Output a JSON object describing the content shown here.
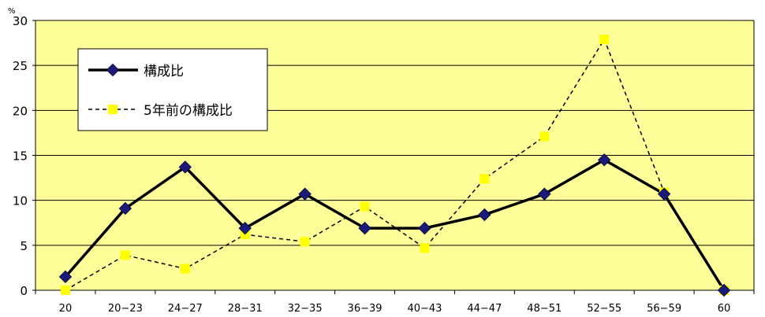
{
  "chart_data": {
    "type": "line",
    "unit_label": "%",
    "categories": [
      "20",
      "20−23",
      "24−27",
      "28−31",
      "32−35",
      "36−39",
      "40−43",
      "44−47",
      "48−51",
      "52−55",
      "56−59",
      "60"
    ],
    "ylim": [
      0,
      30
    ],
    "yticks": [
      0,
      5,
      10,
      15,
      20,
      25,
      30
    ],
    "grid": true,
    "legend_position": "top-left",
    "series": [
      {
        "name": "構成比",
        "color": "#000000",
        "marker": "diamond",
        "marker_color": "#1a1a7a",
        "line_style": "solid",
        "values": [
          1.5,
          9.1,
          13.7,
          6.9,
          10.7,
          6.9,
          6.9,
          8.4,
          10.7,
          14.5,
          10.7,
          0
        ]
      },
      {
        "name": "5年前の構成比",
        "color": "#000000",
        "marker": "square",
        "marker_color": "#ffff00",
        "line_style": "dashed",
        "values": [
          0,
          3.9,
          2.4,
          6.2,
          5.4,
          9.3,
          4.7,
          12.4,
          17.1,
          27.9,
          10.9,
          0
        ]
      }
    ],
    "colors": {
      "plot_background": "#ffff99",
      "grid": "#000000"
    }
  }
}
